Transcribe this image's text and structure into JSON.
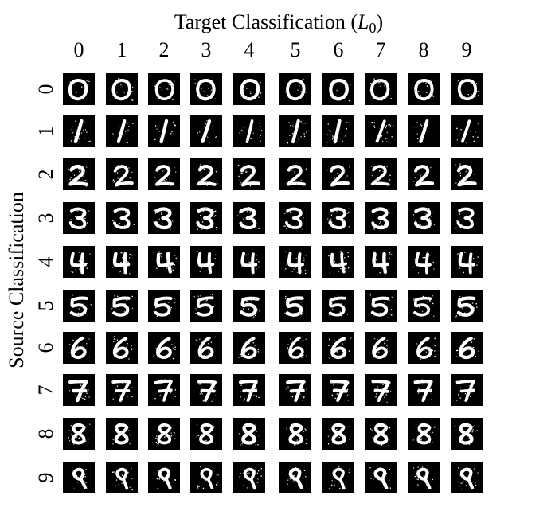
{
  "figure": {
    "title_main": "Target Classification (",
    "title_math": "L",
    "title_sub": "0",
    "title_close": ")",
    "ylabel": "Source Classification",
    "col_labels": [
      "0",
      "1",
      "2",
      "3",
      "4",
      "5",
      "6",
      "7",
      "8",
      "9"
    ],
    "row_labels": [
      "0",
      "1",
      "2",
      "3",
      "4",
      "5",
      "6",
      "7",
      "8",
      "9"
    ],
    "cell_description": "MNIST digit images: each row shows a source digit perturbed toward each target classification",
    "image_colors": {
      "background": "#000000",
      "digit": "#ffffff"
    }
  }
}
